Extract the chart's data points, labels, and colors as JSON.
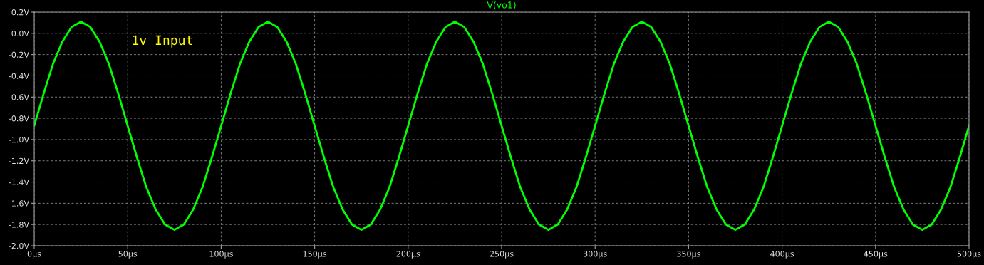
{
  "chart_data": {
    "type": "line",
    "title": "V(vo1)",
    "x": [
      0,
      5,
      10,
      15,
      20,
      25,
      30,
      35,
      40,
      45,
      50,
      55,
      60,
      65,
      70,
      75,
      80,
      85,
      90,
      95,
      100,
      105,
      110,
      115,
      120,
      125,
      130,
      135,
      140,
      145,
      150,
      155,
      160,
      165,
      170,
      175,
      180,
      185,
      190,
      195,
      200,
      205,
      210,
      215,
      220,
      225,
      230,
      235,
      240,
      245,
      250,
      255,
      260,
      265,
      270,
      275,
      280,
      285,
      290,
      295,
      300,
      305,
      310,
      315,
      320,
      325,
      330,
      335,
      340,
      345,
      350,
      355,
      360,
      365,
      370,
      375,
      380,
      385,
      390,
      395,
      400,
      405,
      410,
      415,
      420,
      425,
      430,
      435,
      440,
      445,
      450,
      455,
      460,
      465,
      470,
      475,
      480,
      485,
      490,
      495,
      500
    ],
    "series": [
      {
        "color": "#00ff00",
        "values": [
          -0.87,
          -0.57,
          -0.29,
          -0.08,
          0.06,
          0.11,
          0.06,
          -0.08,
          -0.29,
          -0.57,
          -0.87,
          -1.17,
          -1.45,
          -1.66,
          -1.8,
          -1.85,
          -1.8,
          -1.66,
          -1.45,
          -1.17,
          -0.87,
          -0.57,
          -0.29,
          -0.08,
          0.06,
          0.11,
          0.06,
          -0.08,
          -0.29,
          -0.57,
          -0.87,
          -1.17,
          -1.45,
          -1.66,
          -1.8,
          -1.85,
          -1.8,
          -1.66,
          -1.45,
          -1.17,
          -0.87,
          -0.57,
          -0.29,
          -0.08,
          0.06,
          0.11,
          0.06,
          -0.08,
          -0.29,
          -0.57,
          -0.87,
          -1.17,
          -1.45,
          -1.66,
          -1.8,
          -1.85,
          -1.8,
          -1.66,
          -1.45,
          -1.17,
          -0.87,
          -0.57,
          -0.29,
          -0.08,
          0.06,
          0.11,
          0.06,
          -0.08,
          -0.29,
          -0.57,
          -0.87,
          -1.17,
          -1.45,
          -1.66,
          -1.8,
          -1.85,
          -1.8,
          -1.66,
          -1.45,
          -1.17,
          -0.87,
          -0.57,
          -0.29,
          -0.08,
          0.06,
          0.11,
          0.06,
          -0.08,
          -0.29,
          -0.57,
          -0.87,
          -1.17,
          -1.45,
          -1.66,
          -1.8,
          -1.85,
          -1.8,
          -1.66,
          -1.45,
          -1.17,
          -0.87
        ]
      }
    ],
    "xlim": [
      0,
      500
    ],
    "xticks": [
      {
        "value": 0,
        "label": "0µs"
      },
      {
        "value": 50,
        "label": "50µs"
      },
      {
        "value": 100,
        "label": "100µs"
      },
      {
        "value": 150,
        "label": "150µs"
      },
      {
        "value": 200,
        "label": "200µs"
      },
      {
        "value": 250,
        "label": "250µs"
      },
      {
        "value": 300,
        "label": "300µs"
      },
      {
        "value": 350,
        "label": "350µs"
      },
      {
        "value": 400,
        "label": "400µs"
      },
      {
        "value": 450,
        "label": "450µs"
      },
      {
        "value": 500,
        "label": "500µs"
      }
    ],
    "ylim": [
      -2.0,
      0.2
    ],
    "yticks": [
      {
        "value": 0.2,
        "label": "0.2V"
      },
      {
        "value": 0.0,
        "label": "0.0V"
      },
      {
        "value": -0.2,
        "label": "-0.2V"
      },
      {
        "value": -0.4,
        "label": "-0.4V"
      },
      {
        "value": -0.6,
        "label": "-0.6V"
      },
      {
        "value": -0.8,
        "label": "-0.8V"
      },
      {
        "value": -1.0,
        "label": "-1.0V"
      },
      {
        "value": -1.2,
        "label": "-1.2V"
      },
      {
        "value": -1.4,
        "label": "-1.4V"
      },
      {
        "value": -1.6,
        "label": "-1.6V"
      },
      {
        "value": -1.8,
        "label": "-1.8V"
      },
      {
        "value": -2.0,
        "label": "-2.0V"
      }
    ],
    "grid": true,
    "line_style": "solid",
    "marker": "none",
    "annotations": [
      "1v Input"
    ]
  }
}
